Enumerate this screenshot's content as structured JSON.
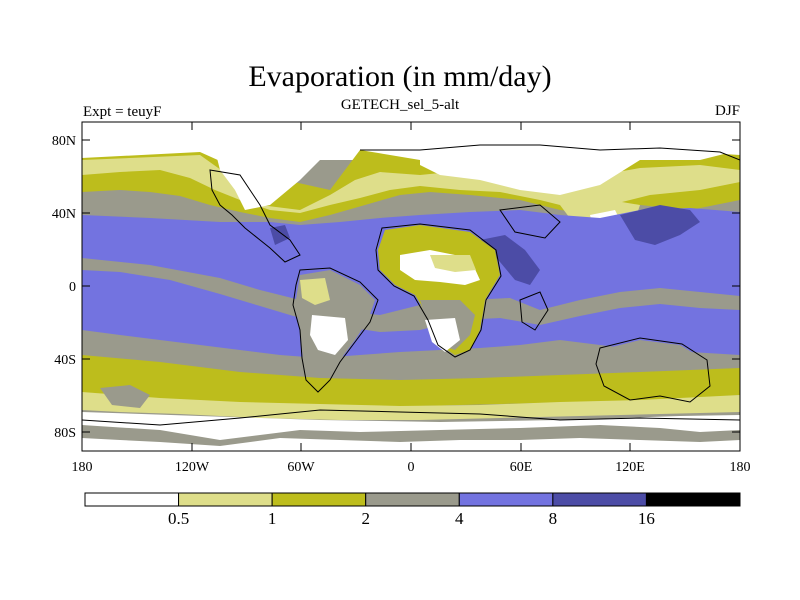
{
  "title": "Evaporation (in mm/day)",
  "left_string": "Expt = teuyF",
  "center_string": "GETECH_sel_5-alt",
  "right_string": "DJF",
  "lat_ticks": [
    "80N",
    "40N",
    "0",
    "40S",
    "80S"
  ],
  "lon_ticks": [
    "180",
    "120W",
    "60W",
    "0",
    "60E",
    "120E",
    "180"
  ],
  "colorbar": {
    "colors": [
      "#ffffff",
      "#dede8a",
      "#bdbd1c",
      "#9a9a8c",
      "#7373e0",
      "#4c4ca6",
      "#000000"
    ],
    "labels": [
      "0.5",
      "1",
      "2",
      "4",
      "8",
      "16"
    ]
  },
  "chart_data": {
    "type": "heatmap",
    "variable": "Evaporation",
    "units": "mm/day",
    "season": "DJF",
    "x_range": [
      -180,
      180
    ],
    "y_range": [
      -90,
      90
    ],
    "levels": [
      0.5,
      1,
      2,
      4,
      8,
      16
    ],
    "projection": "cylindrical-equidistant"
  }
}
